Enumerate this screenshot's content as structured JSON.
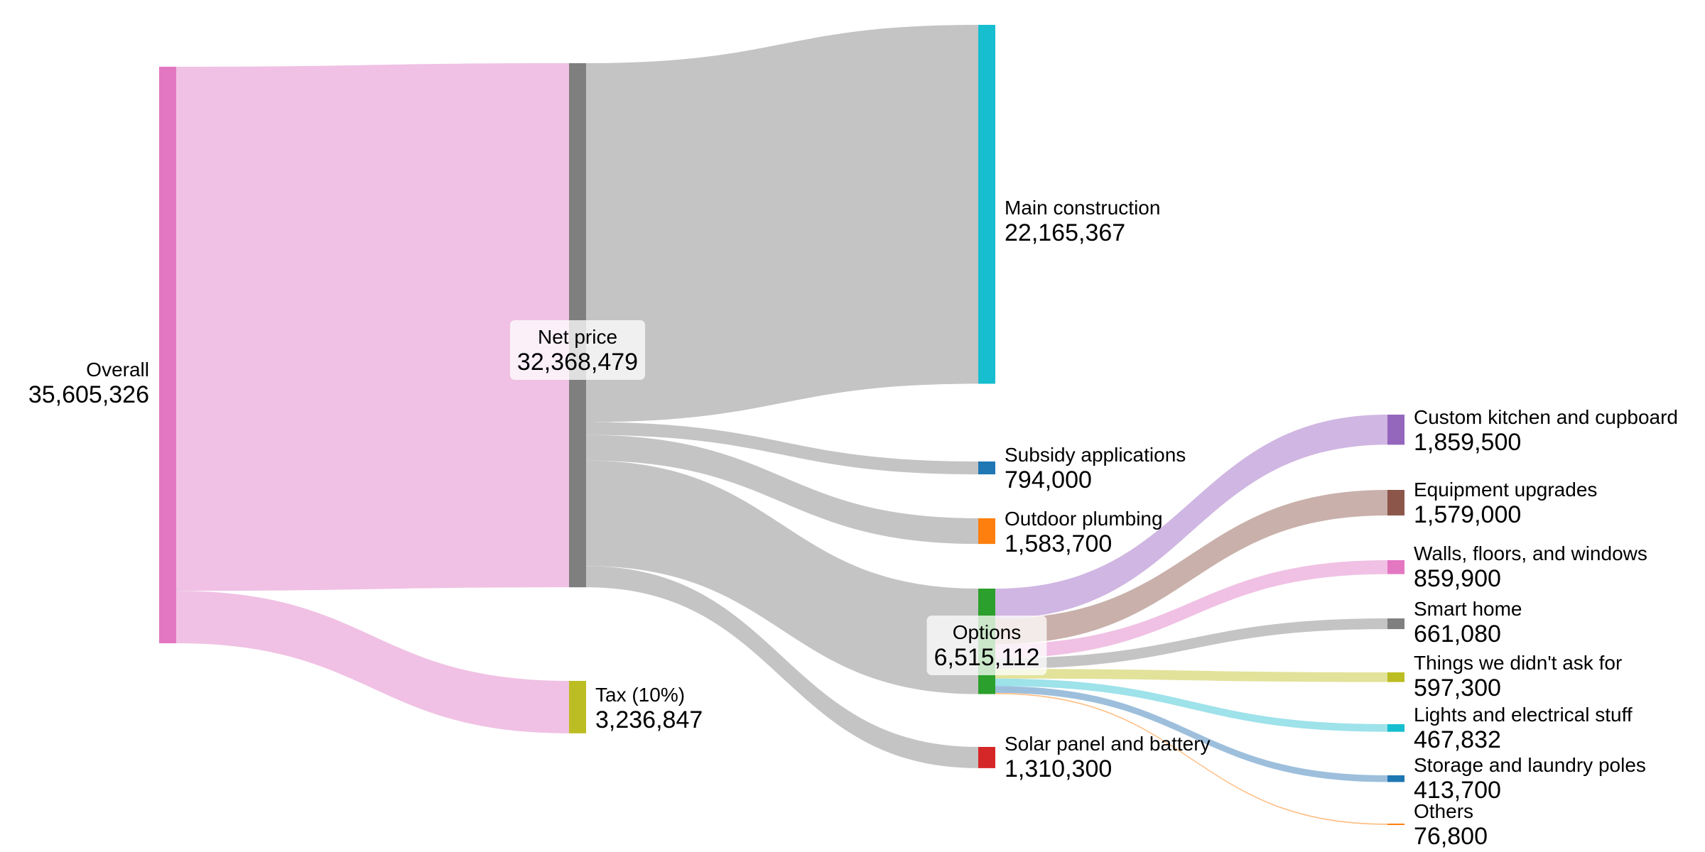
{
  "chart_data": {
    "type": "sankey",
    "title": "",
    "nodes": [
      {
        "id": "overall",
        "name": "Overall",
        "value": "35,605,326",
        "color": "#e377c2",
        "label_box": false
      },
      {
        "id": "net",
        "name": "Net price",
        "value": "32,368,479",
        "color": "#7f7f7f",
        "label_box": true
      },
      {
        "id": "tax",
        "name": "Tax (10%)",
        "value": "3,236,847",
        "color": "#bcbd22",
        "label_box": false
      },
      {
        "id": "main",
        "name": "Main construction",
        "value": "22,165,367",
        "color": "#17becf",
        "label_box": false
      },
      {
        "id": "subsidy",
        "name": "Subsidy applications",
        "value": "794,000",
        "color": "#1f77b4",
        "label_box": false
      },
      {
        "id": "plumbing",
        "name": "Outdoor plumbing",
        "value": "1,583,700",
        "color": "#ff7f0e",
        "label_box": false
      },
      {
        "id": "options",
        "name": "Options",
        "value": "6,515,112",
        "color": "#2ca02c",
        "label_box": true
      },
      {
        "id": "solar",
        "name": "Solar panel and battery",
        "value": "1,310,300",
        "color": "#d62728",
        "label_box": false
      },
      {
        "id": "kitchen",
        "name": "Custom kitchen and cupboard",
        "value": "1,859,500",
        "color": "#9467bd",
        "label_box": false
      },
      {
        "id": "equipment",
        "name": "Equipment upgrades",
        "value": "1,579,000",
        "color": "#8c564b",
        "label_box": false
      },
      {
        "id": "walls",
        "name": "Walls, floors, and windows",
        "value": "859,900",
        "color": "#e377c2",
        "label_box": false
      },
      {
        "id": "smart",
        "name": "Smart home",
        "value": "661,080",
        "color": "#7f7f7f",
        "label_box": false
      },
      {
        "id": "things",
        "name": "Things we didn't ask for",
        "value": "597,300",
        "color": "#bcbd22",
        "label_box": false
      },
      {
        "id": "lights",
        "name": "Lights and electrical stuff",
        "value": "467,832",
        "color": "#17becf",
        "label_box": false
      },
      {
        "id": "storage",
        "name": "Storage and laundry poles",
        "value": "413,700",
        "color": "#1f77b4",
        "label_box": false
      },
      {
        "id": "others",
        "name": "Others",
        "value": "76,800",
        "color": "#ff7f0e",
        "label_box": false
      }
    ],
    "links": [
      {
        "source": "overall",
        "target": "net",
        "value": 32368479,
        "color": "#f0c1e4"
      },
      {
        "source": "overall",
        "target": "tax",
        "value": 3236847,
        "color": "#f0c1e4"
      },
      {
        "source": "net",
        "target": "main",
        "value": 22165367,
        "color": "#c4c4c4"
      },
      {
        "source": "net",
        "target": "subsidy",
        "value": 794000,
        "color": "#c4c4c4"
      },
      {
        "source": "net",
        "target": "plumbing",
        "value": 1583700,
        "color": "#c4c4c4"
      },
      {
        "source": "net",
        "target": "options",
        "value": 6515112,
        "color": "#c4c4c4"
      },
      {
        "source": "net",
        "target": "solar",
        "value": 1310300,
        "color": "#c4c4c4"
      },
      {
        "source": "options",
        "target": "kitchen",
        "value": 1859500,
        "color": "#d0b6e2"
      },
      {
        "source": "options",
        "target": "equipment",
        "value": 1579000,
        "color": "#c9b0aa"
      },
      {
        "source": "options",
        "target": "walls",
        "value": 859900,
        "color": "#f0c1e4"
      },
      {
        "source": "options",
        "target": "smart",
        "value": 661080,
        "color": "#c4c4c4"
      },
      {
        "source": "options",
        "target": "things",
        "value": 597300,
        "color": "#e2e29a"
      },
      {
        "source": "options",
        "target": "lights",
        "value": 467832,
        "color": "#9ee2ea"
      },
      {
        "source": "options",
        "target": "storage",
        "value": 413700,
        "color": "#9dbfdc"
      },
      {
        "source": "options",
        "target": "others",
        "value": 76800,
        "color": "#ffbf86"
      }
    ]
  }
}
